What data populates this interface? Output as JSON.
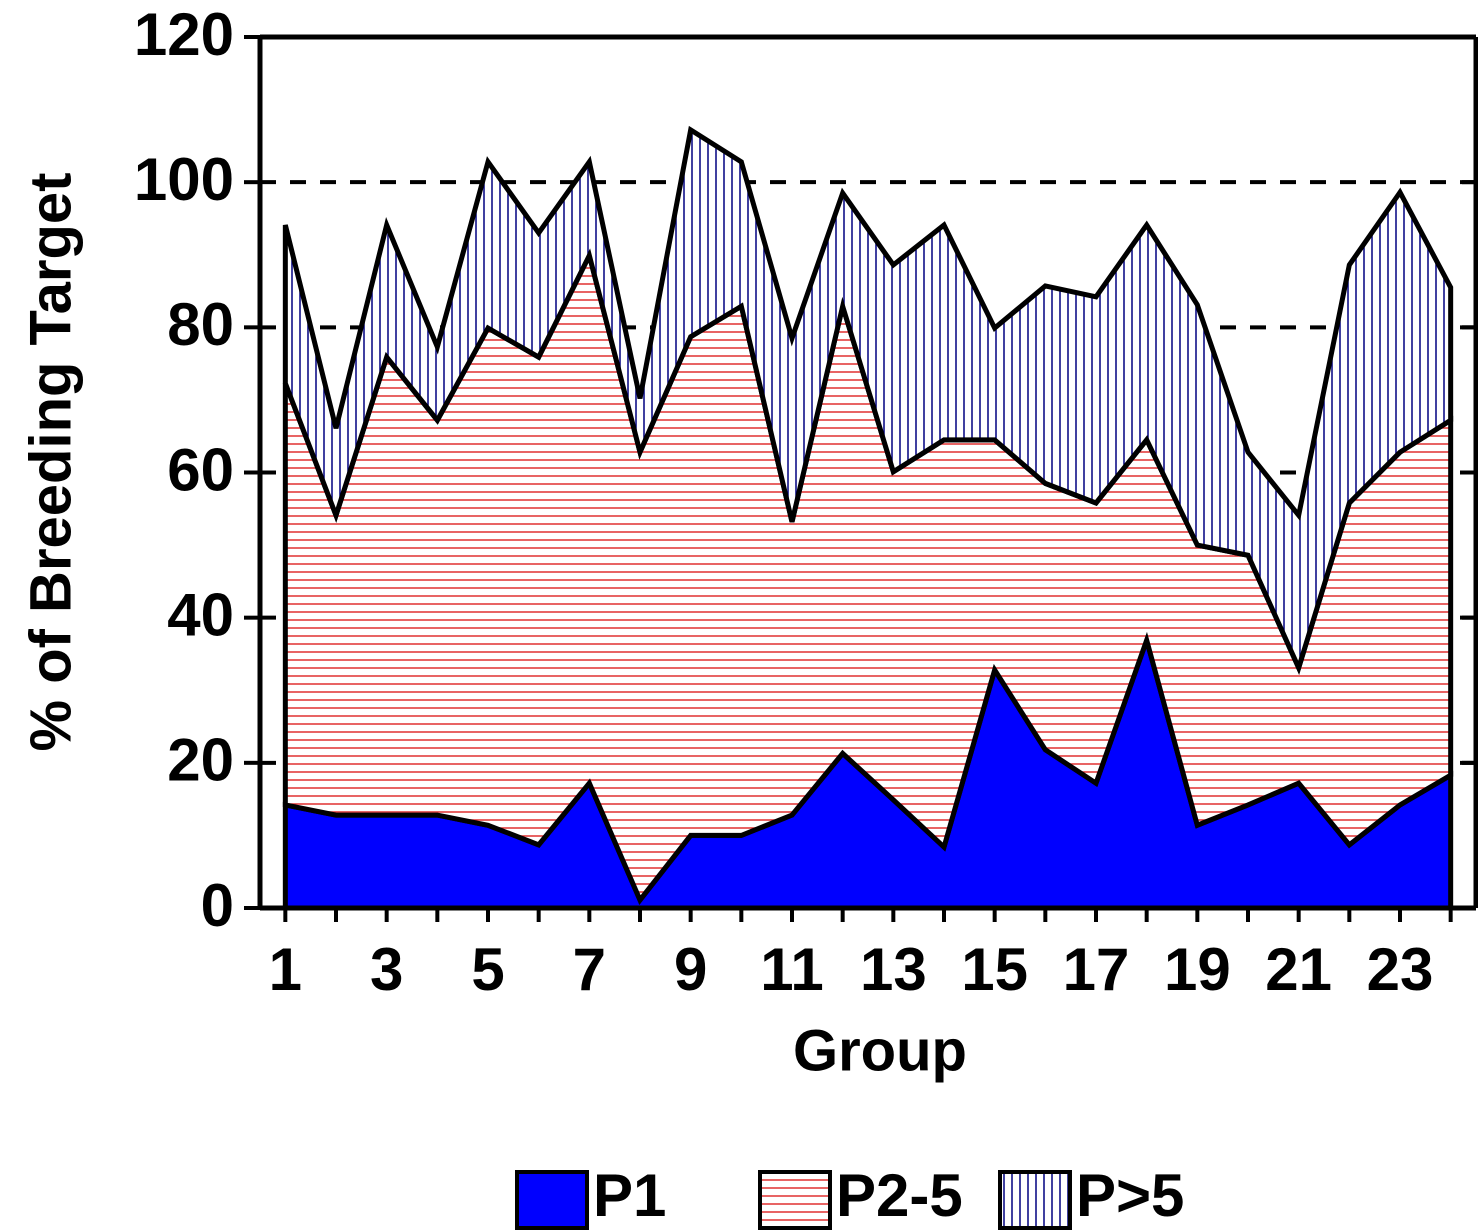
{
  "chart_data": {
    "type": "stacked-area",
    "x_label": "Group",
    "y_label": "% of Breeding Target",
    "x": [
      1,
      2,
      3,
      4,
      5,
      6,
      7,
      8,
      9,
      10,
      11,
      12,
      13,
      14,
      15,
      16,
      17,
      18,
      19,
      20,
      21,
      22,
      23,
      24
    ],
    "xlim": [
      0.5,
      24.5
    ],
    "xticks": [
      1,
      3,
      5,
      7,
      9,
      11,
      13,
      15,
      17,
      19,
      21,
      23
    ],
    "ylim": [
      0,
      120
    ],
    "yticks": [
      0,
      20,
      40,
      60,
      80,
      100,
      120
    ],
    "grid": true,
    "legend": "bottom",
    "series": [
      {
        "name": "P1",
        "color": "#0000ff",
        "pattern": "solid",
        "values": [
          14.2,
          12.8,
          12.8,
          12.8,
          11.4,
          8.7,
          17.2,
          1.1,
          10,
          10,
          12.8,
          21.3,
          14.9,
          8.4,
          32.8,
          21.8,
          17.2,
          36.9,
          11.4,
          14.2,
          17.2,
          8.7,
          14.2,
          18.3
        ]
      },
      {
        "name": "P2-5",
        "color": "#e03030",
        "pattern": "horizontal",
        "values": [
          58.1,
          41.3,
          63.1,
          54.4,
          68.5,
          67.2,
          72.7,
          61.7,
          68.7,
          72.9,
          40.4,
          61.6,
          45.2,
          56.1,
          31.7,
          36.7,
          38.6,
          27.6,
          38.6,
          34.4,
          15.9,
          47.1,
          48.6,
          48.9
        ]
      },
      {
        "name": "P>5",
        "color": "#000080",
        "pattern": "vertical",
        "values": [
          21.8,
          12.0,
          18.2,
          10.1,
          22.9,
          17.1,
          12.9,
          7.4,
          28.5,
          19.9,
          25.3,
          15.6,
          28.5,
          29.6,
          15.4,
          27.2,
          28.4,
          29.6,
          33.1,
          14.2,
          21.0,
          32.8,
          35.8,
          18.3
        ]
      }
    ]
  }
}
